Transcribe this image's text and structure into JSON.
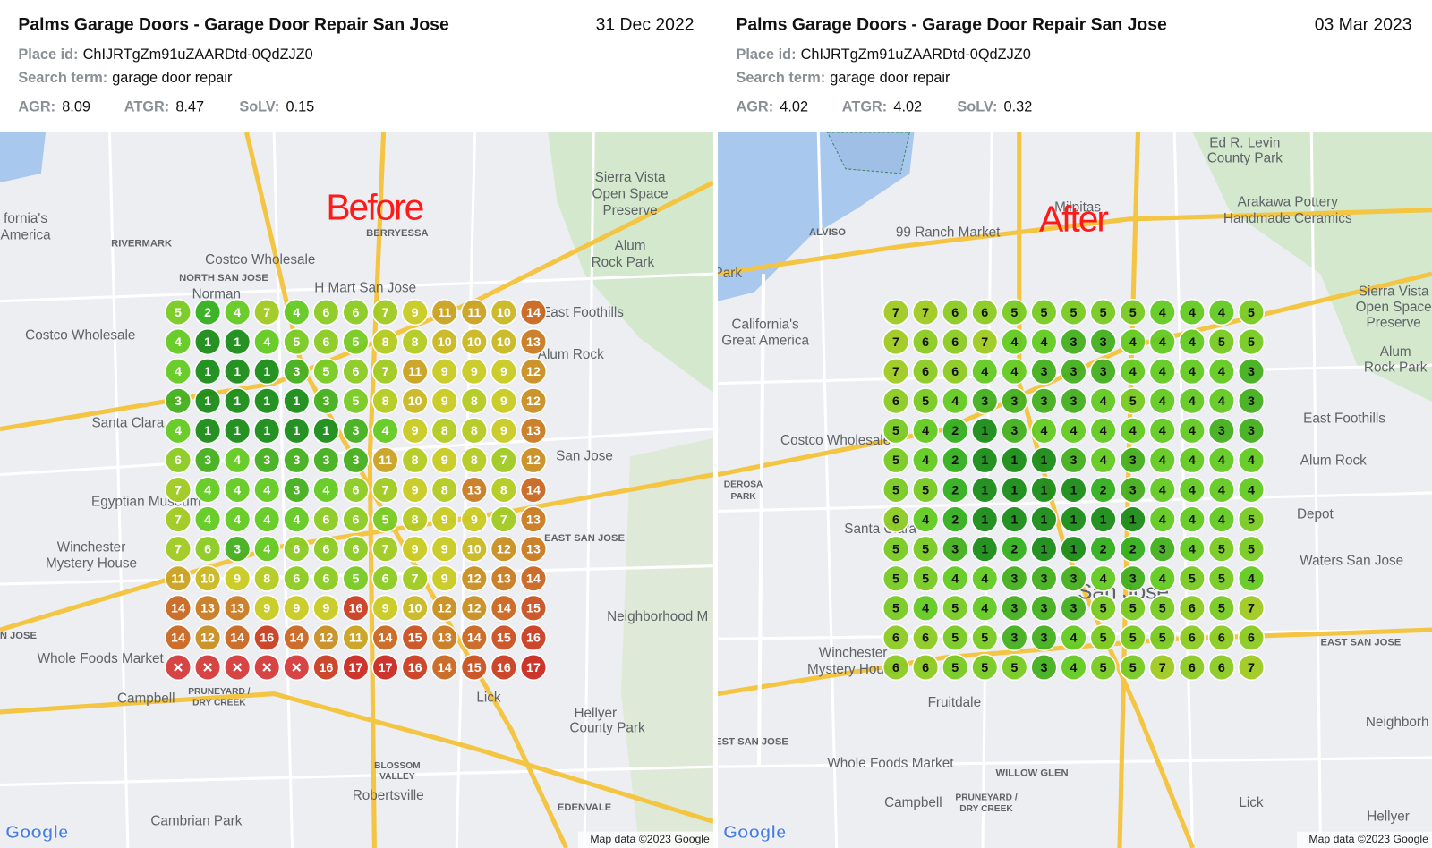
{
  "panels": [
    {
      "title": "Palms Garage Doors - Garage Door Repair San Jose",
      "date": "31 Dec 2022",
      "place_id_label": "Place id:",
      "place_id": "ChIJRTgZm91uZAARDtd-0QdZJZ0",
      "search_term_label": "Search term:",
      "search_term": "garage door repair",
      "metrics": [
        {
          "label": "AGR:",
          "value": 8.09
        },
        {
          "label": "ATGR:",
          "value": 8.47
        },
        {
          "label": "SoLV:",
          "value": 0.15
        }
      ],
      "overlay_label": "Before",
      "marker_text_color": "#ffffff",
      "grid": [
        [
          5,
          2,
          4,
          7,
          4,
          6,
          6,
          7,
          9,
          11,
          11,
          10,
          14
        ],
        [
          4,
          1,
          1,
          4,
          5,
          6,
          5,
          8,
          8,
          10,
          10,
          10,
          13
        ],
        [
          4,
          1,
          1,
          1,
          3,
          5,
          6,
          7,
          11,
          9,
          9,
          9,
          12
        ],
        [
          3,
          1,
          1,
          1,
          1,
          3,
          5,
          8,
          10,
          9,
          8,
          9,
          12
        ],
        [
          4,
          1,
          1,
          1,
          1,
          1,
          3,
          4,
          9,
          8,
          8,
          9,
          13
        ],
        [
          6,
          3,
          4,
          3,
          3,
          3,
          3,
          11,
          8,
          9,
          8,
          7,
          12
        ],
        [
          7,
          4,
          4,
          4,
          3,
          4,
          6,
          7,
          9,
          8,
          13,
          8,
          14
        ],
        [
          7,
          4,
          4,
          4,
          4,
          6,
          6,
          5,
          8,
          9,
          9,
          7,
          13
        ],
        [
          7,
          6,
          3,
          4,
          6,
          6,
          6,
          7,
          9,
          9,
          10,
          12,
          13
        ],
        [
          11,
          10,
          9,
          8,
          6,
          6,
          5,
          6,
          7,
          9,
          12,
          13,
          14
        ],
        [
          14,
          13,
          13,
          9,
          9,
          9,
          16,
          9,
          10,
          12,
          12,
          14,
          15
        ],
        [
          14,
          12,
          14,
          16,
          14,
          12,
          11,
          14,
          15,
          13,
          14,
          15,
          16
        ],
        [
          null,
          null,
          null,
          null,
          null,
          16,
          17,
          17,
          16,
          14,
          15,
          16,
          17
        ]
      ],
      "map_labels": [
        "fornia's",
        "America",
        "RIVERMARK",
        "Costco Wholesale",
        "BERRYESSA",
        "Sierra Vista",
        "Open Space",
        "Preserve",
        "Alum",
        "Rock Park",
        "NORTH SAN JOSE",
        "H Mart San Jose",
        "Norman",
        "East Foothills",
        "Costco Wholesale",
        "Alum Rock",
        "Santa Clara",
        "San Jose",
        "Egyptian Museum",
        "EAST SAN JOSE",
        "Winchester",
        "Mystery House",
        "Neighborhood M",
        "N JOSE",
        "Whole Foods Market",
        "Campbell",
        "PRUNEYARD /",
        "DRY CREEK",
        "Lick",
        "Hellyer",
        "County Park",
        "BLOSSOM",
        "VALLEY",
        "Robertsville",
        "EDENVALE",
        "Cambrian Park"
      ],
      "attribution": "Map data ©2023 Google",
      "logo": "Google"
    },
    {
      "title": "Palms Garage Doors - Garage Door Repair San Jose",
      "date": "03 Mar 2023",
      "place_id_label": "Place id:",
      "place_id": "ChIJRTgZm91uZAARDtd-0QdZJZ0",
      "search_term_label": "Search term:",
      "search_term": "garage door repair",
      "metrics": [
        {
          "label": "AGR:",
          "value": 4.02
        },
        {
          "label": "ATGR:",
          "value": 4.02
        },
        {
          "label": "SoLV:",
          "value": 0.32
        }
      ],
      "overlay_label": "After",
      "marker_text_color": "#111111",
      "grid": [
        [
          7,
          7,
          6,
          6,
          5,
          5,
          5,
          5,
          5,
          4,
          4,
          4,
          5
        ],
        [
          7,
          6,
          6,
          7,
          4,
          4,
          3,
          3,
          4,
          4,
          4,
          5,
          5
        ],
        [
          7,
          6,
          6,
          4,
          4,
          3,
          3,
          3,
          4,
          4,
          4,
          4,
          3
        ],
        [
          6,
          5,
          4,
          3,
          3,
          3,
          3,
          4,
          5,
          4,
          4,
          4,
          3
        ],
        [
          5,
          4,
          2,
          1,
          3,
          4,
          4,
          4,
          4,
          4,
          4,
          3,
          3
        ],
        [
          5,
          4,
          2,
          1,
          1,
          1,
          3,
          4,
          3,
          4,
          4,
          4,
          4
        ],
        [
          5,
          5,
          2,
          1,
          1,
          1,
          1,
          2,
          3,
          4,
          4,
          4,
          4
        ],
        [
          6,
          4,
          2,
          1,
          1,
          1,
          1,
          1,
          1,
          4,
          4,
          4,
          5
        ],
        [
          5,
          5,
          3,
          1,
          2,
          1,
          1,
          2,
          2,
          3,
          4,
          5,
          5
        ],
        [
          5,
          5,
          4,
          4,
          3,
          3,
          3,
          4,
          3,
          4,
          5,
          5,
          4
        ],
        [
          5,
          4,
          5,
          4,
          3,
          3,
          3,
          5,
          5,
          5,
          6,
          5,
          7
        ],
        [
          6,
          6,
          5,
          5,
          3,
          3,
          4,
          5,
          5,
          5,
          6,
          6,
          6
        ],
        [
          6,
          6,
          5,
          5,
          5,
          3,
          4,
          5,
          5,
          7,
          6,
          6,
          7
        ]
      ],
      "map_labels": [
        "Ed R. Levin",
        "County Park",
        "Milpitas",
        "Arakawa Pottery",
        "Handmade Ceramics",
        "ALVISO",
        "99 Ranch Market",
        "Park",
        "Sierra Vista",
        "Open Space",
        "Preserve",
        "California's",
        "Great America",
        "Alum",
        "Rock Park",
        "East Foothills",
        "Costco Wholesale",
        "Alum Rock",
        "DEROSA",
        "PARK",
        "Santa Clara",
        "Depot",
        "Waters San Jose",
        "San Jose",
        "EAST SAN JOSE",
        "Winchester",
        "Mystery House",
        "Fruitdale",
        "WEST SAN JOSE",
        "Whole Foods Market",
        "WILLOW GLEN",
        "Campbell",
        "PRUNEYARD /",
        "DRY CREEK",
        "Lick",
        "Neighborh",
        "Hellyer"
      ],
      "attribution": "Map data ©2023 Google",
      "logo": "Google"
    }
  ]
}
